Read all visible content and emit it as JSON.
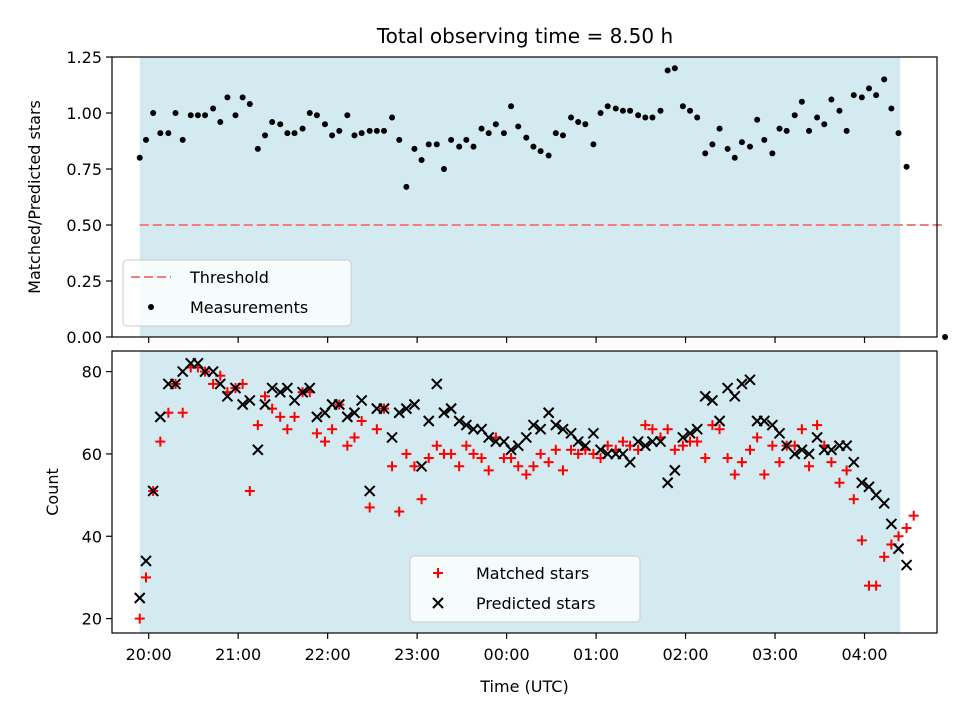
{
  "title": "Total observing time = 8.50 h",
  "colors": {
    "night_band": "#d3eaf0",
    "threshold": "#f08080",
    "measurement": "#000000",
    "matched": "#ff0000",
    "predicted": "#000000"
  },
  "chart_data": [
    {
      "type": "scatter",
      "ylabel": "Matched/Predicted stars",
      "ylim": [
        0,
        1.25
      ],
      "yticks": [
        "0.00",
        "0.25",
        "0.50",
        "0.75",
        "1.00",
        "1.25"
      ],
      "xlim_hours": [
        19.59,
        28.81
      ],
      "night_band_hours": [
        19.9,
        28.4
      ],
      "threshold": {
        "name": "Threshold",
        "value": 0.5,
        "x_range_hours": [
          19.9,
          28.9
        ]
      },
      "legend": {
        "position": "lower-left",
        "entries": [
          "Threshold",
          "Measurements"
        ]
      },
      "series": [
        {
          "name": "Measurements",
          "x": [
            19.9,
            19.97,
            20.05,
            20.13,
            20.22,
            20.3,
            20.38,
            20.47,
            20.55,
            20.63,
            20.72,
            20.8,
            20.88,
            20.97,
            21.05,
            21.13,
            21.22,
            21.3,
            21.38,
            21.47,
            21.55,
            21.63,
            21.72,
            21.8,
            21.88,
            21.97,
            22.05,
            22.13,
            22.22,
            22.3,
            22.38,
            22.47,
            22.55,
            22.63,
            22.72,
            22.8,
            22.88,
            22.97,
            23.05,
            23.13,
            23.22,
            23.3,
            23.38,
            23.47,
            23.55,
            23.63,
            23.72,
            23.8,
            23.88,
            23.97,
            24.05,
            24.13,
            24.22,
            24.3,
            24.38,
            24.47,
            24.55,
            24.63,
            24.72,
            24.8,
            24.88,
            24.97,
            25.05,
            25.13,
            25.22,
            25.3,
            25.38,
            25.47,
            25.55,
            25.63,
            25.72,
            25.8,
            25.88,
            25.97,
            26.05,
            26.13,
            26.22,
            26.3,
            26.38,
            26.47,
            26.55,
            26.63,
            26.72,
            26.8,
            26.88,
            26.97,
            27.05,
            27.13,
            27.22,
            27.3,
            27.38,
            27.47,
            27.55,
            27.63,
            27.72,
            27.8,
            27.88,
            27.97,
            28.05,
            28.13,
            28.22,
            28.3,
            28.38,
            28.47
          ],
          "y": [
            0.8,
            0.88,
            1.0,
            0.91,
            0.91,
            1.0,
            0.88,
            0.99,
            0.99,
            0.99,
            1.02,
            0.96,
            1.07,
            0.99,
            1.07,
            1.04,
            0.84,
            0.9,
            0.96,
            0.95,
            0.91,
            0.91,
            0.93,
            1.0,
            0.99,
            0.95,
            0.9,
            0.92,
            0.99,
            0.9,
            0.91,
            0.92,
            0.92,
            0.92,
            0.98,
            0.88,
            0.67,
            0.84,
            0.79,
            0.86,
            0.86,
            0.75,
            0.88,
            0.85,
            0.88,
            0.85,
            0.93,
            0.91,
            0.95,
            0.91,
            1.03,
            0.94,
            0.89,
            0.85,
            0.83,
            0.81,
            0.91,
            0.9,
            0.98,
            0.96,
            0.95,
            0.86,
            1.0,
            1.03,
            1.02,
            1.01,
            1.01,
            0.99,
            0.98,
            0.98,
            1.01,
            1.19,
            1.2,
            1.03,
            1.01,
            0.98,
            0.82,
            0.86,
            0.93,
            0.84,
            0.8,
            0.87,
            0.85,
            0.97,
            0.88,
            0.82,
            0.93,
            0.92,
            0.99,
            1.05,
            0.92,
            0.98,
            0.95,
            1.06,
            1.01,
            0.92,
            1.08,
            1.07,
            1.11,
            1.08,
            1.15,
            1.02,
            0.91,
            0.76
          ]
        }
      ],
      "extra_points": [
        {
          "x": 28.9,
          "y": 0.0
        }
      ]
    },
    {
      "type": "scatter",
      "xlabel": "Time (UTC)",
      "ylabel": "Count",
      "ylim": [
        16.5,
        85
      ],
      "yticks": [
        "20",
        "40",
        "60",
        "80"
      ],
      "xlim_hours": [
        19.59,
        28.81
      ],
      "night_band_hours": [
        19.9,
        28.4
      ],
      "xticks": [
        "20:00",
        "21:00",
        "22:00",
        "23:00",
        "00:00",
        "01:00",
        "02:00",
        "03:00",
        "04:00"
      ],
      "legend": {
        "position": "lower-center",
        "entries": [
          "Matched stars",
          "Predicted stars"
        ]
      },
      "series": [
        {
          "name": "Matched stars",
          "x": [
            19.9,
            19.97,
            20.05,
            20.13,
            20.22,
            20.3,
            20.38,
            20.47,
            20.55,
            20.63,
            20.72,
            20.8,
            20.88,
            20.97,
            21.05,
            21.13,
            21.22,
            21.3,
            21.38,
            21.47,
            21.55,
            21.63,
            21.72,
            21.8,
            21.88,
            21.97,
            22.05,
            22.13,
            22.22,
            22.3,
            22.38,
            22.47,
            22.55,
            22.63,
            22.72,
            22.8,
            22.88,
            22.97,
            23.05,
            23.13,
            23.22,
            23.3,
            23.38,
            23.47,
            23.55,
            23.63,
            23.72,
            23.8,
            23.88,
            23.97,
            24.05,
            24.13,
            24.22,
            24.3,
            24.38,
            24.47,
            24.55,
            24.63,
            24.72,
            24.8,
            24.88,
            24.97,
            25.05,
            25.13,
            25.22,
            25.3,
            25.38,
            25.47,
            25.55,
            25.63,
            25.72,
            25.8,
            25.88,
            25.97,
            26.05,
            26.13,
            26.22,
            26.3,
            26.38,
            26.47,
            26.55,
            26.63,
            26.72,
            26.8,
            26.88,
            26.97,
            27.05,
            27.13,
            27.22,
            27.3,
            27.38,
            27.47,
            27.55,
            27.63,
            27.72,
            27.8,
            27.88,
            27.97,
            28.05,
            28.13,
            28.22,
            28.3,
            28.38,
            28.47,
            28.55
          ],
          "y": [
            20,
            30,
            51,
            63,
            70,
            77,
            70,
            81,
            81,
            80,
            77,
            79,
            75,
            76,
            77,
            51,
            67,
            74,
            71,
            69,
            66,
            69,
            75,
            75,
            65,
            63,
            66,
            72,
            62,
            64,
            68,
            47,
            66,
            71,
            57,
            46,
            60,
            57,
            49,
            59,
            62,
            60,
            60,
            57,
            62,
            60,
            59,
            56,
            64,
            59,
            59,
            57,
            55,
            57,
            60,
            58,
            61,
            56,
            61,
            60,
            61,
            60,
            59,
            62,
            61,
            63,
            62,
            61,
            67,
            66,
            64,
            66,
            61,
            62,
            63,
            63,
            59,
            67,
            66,
            59,
            55,
            58,
            61,
            64,
            55,
            62,
            58,
            62,
            62,
            66,
            57,
            67,
            62,
            58,
            53,
            56,
            49,
            39,
            28,
            28,
            35,
            38,
            40,
            42,
            45
          ]
        },
        {
          "name": "Predicted stars",
          "x": [
            19.9,
            19.97,
            20.05,
            20.13,
            20.22,
            20.3,
            20.38,
            20.47,
            20.55,
            20.63,
            20.72,
            20.8,
            20.88,
            20.97,
            21.05,
            21.13,
            21.22,
            21.3,
            21.38,
            21.47,
            21.55,
            21.63,
            21.72,
            21.8,
            21.88,
            21.97,
            22.05,
            22.13,
            22.22,
            22.3,
            22.38,
            22.47,
            22.55,
            22.63,
            22.72,
            22.8,
            22.88,
            22.97,
            23.05,
            23.13,
            23.22,
            23.3,
            23.38,
            23.47,
            23.55,
            23.63,
            23.72,
            23.8,
            23.88,
            23.97,
            24.05,
            24.13,
            24.22,
            24.3,
            24.38,
            24.47,
            24.55,
            24.63,
            24.72,
            24.8,
            24.88,
            24.97,
            25.05,
            25.13,
            25.22,
            25.3,
            25.38,
            25.47,
            25.55,
            25.63,
            25.72,
            25.8,
            25.88,
            25.97,
            26.05,
            26.13,
            26.22,
            26.3,
            26.38,
            26.47,
            26.55,
            26.63,
            26.72,
            26.8,
            26.88,
            26.97,
            27.05,
            27.13,
            27.22,
            27.3,
            27.38,
            27.47,
            27.55,
            27.63,
            27.72,
            27.8,
            27.88,
            27.97,
            28.05,
            28.13,
            28.22,
            28.3,
            28.38,
            28.47
          ],
          "y": [
            25,
            34,
            51,
            69,
            77,
            77,
            80,
            82,
            82,
            80,
            80,
            77,
            74,
            76,
            72,
            73,
            61,
            72,
            76,
            75,
            76,
            73,
            75,
            76,
            69,
            70,
            72,
            72,
            69,
            70,
            73,
            51,
            71,
            71,
            64,
            70,
            71,
            72,
            57,
            68,
            77,
            70,
            71,
            68,
            67,
            66,
            66,
            64,
            63,
            63,
            61,
            62,
            64,
            67,
            66,
            70,
            67,
            66,
            65,
            63,
            62,
            65,
            61,
            60,
            60,
            60,
            58,
            63,
            62,
            63,
            63,
            53,
            56,
            64,
            65,
            66,
            74,
            73,
            68,
            76,
            74,
            77,
            78,
            68,
            68,
            67,
            65,
            62,
            60,
            61,
            60,
            64,
            61,
            61,
            62,
            62,
            58,
            53,
            52,
            50,
            48,
            43,
            37,
            33
          ]
        }
      ]
    }
  ]
}
